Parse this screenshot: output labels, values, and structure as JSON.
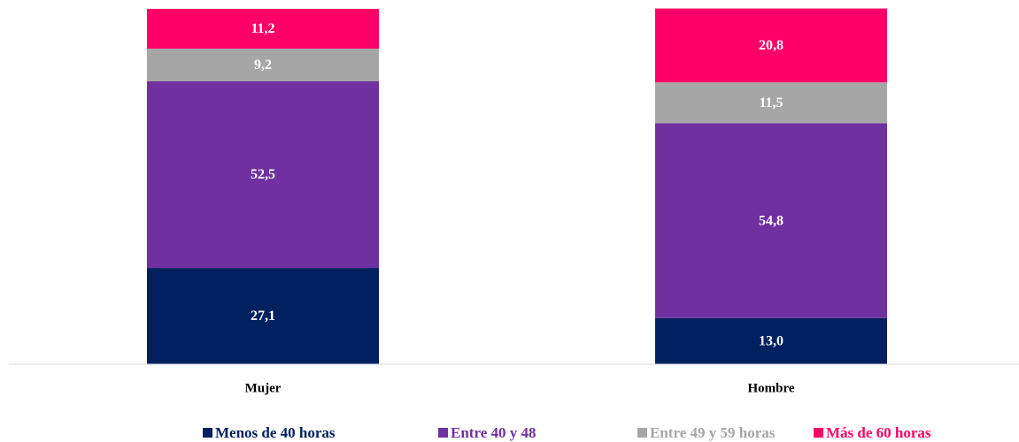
{
  "chart_data": {
    "type": "bar",
    "stacked": true,
    "categories": [
      "Mujer",
      "Hombre"
    ],
    "series": [
      {
        "name": "Menos de 40 horas",
        "color": "#002060",
        "values": [
          27.1,
          13.0
        ],
        "value_labels": [
          "27,1",
          "13,0"
        ]
      },
      {
        "name": "Entre 40 y 48",
        "color": "#7030a0",
        "values": [
          52.5,
          54.8
        ],
        "value_labels": [
          "52,5",
          "54,8"
        ]
      },
      {
        "name": "Entre 49 y 59 horas",
        "color": "#a6a6a6",
        "values": [
          9.2,
          11.5
        ],
        "value_labels": [
          "9,2",
          "11,5"
        ]
      },
      {
        "name": "Más de 60 horas",
        "color": "#ff0066",
        "values": [
          11.2,
          20.8
        ],
        "value_labels": [
          "11,2",
          "20,8"
        ]
      }
    ],
    "ylim": [
      0,
      100
    ],
    "legend": "bottom"
  }
}
